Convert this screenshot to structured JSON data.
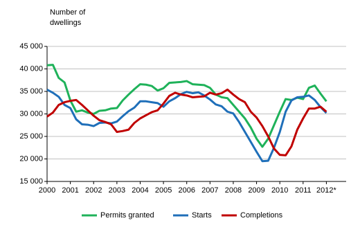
{
  "chart_data": {
    "type": "line",
    "ylabel_lines": [
      "Number of",
      "dwellings"
    ],
    "x": [
      2000,
      2000.25,
      2000.5,
      2000.75,
      2001,
      2001.25,
      2001.5,
      2001.75,
      2002,
      2002.25,
      2002.5,
      2002.75,
      2003,
      2003.25,
      2003.5,
      2003.75,
      2004,
      2004.25,
      2004.5,
      2004.75,
      2005,
      2005.25,
      2005.5,
      2005.75,
      2006,
      2006.25,
      2006.5,
      2006.75,
      2007,
      2007.25,
      2007.5,
      2007.75,
      2008,
      2008.25,
      2008.5,
      2008.75,
      2009,
      2009.25,
      2009.5,
      2009.75,
      2010,
      2010.25,
      2010.5,
      2010.75,
      2011,
      2011.25,
      2011.5,
      2011.75,
      2012
    ],
    "series": [
      {
        "name": "Permits granted",
        "color": "#1fb25a",
        "values": [
          40800,
          40900,
          38000,
          37000,
          33000,
          30500,
          30800,
          30300,
          30000,
          30700,
          30800,
          31200,
          31300,
          33000,
          34300,
          35500,
          36600,
          36500,
          36200,
          35200,
          35700,
          36900,
          37000,
          37100,
          37300,
          36600,
          36500,
          36400,
          35800,
          34300,
          33700,
          33500,
          32000,
          30500,
          29000,
          27000,
          24500,
          22700,
          24500,
          27500,
          30500,
          33300,
          33100,
          33600,
          33300,
          35800,
          36300,
          34500,
          32800
        ]
      },
      {
        "name": "Starts",
        "color": "#1f6fb9",
        "values": [
          35400,
          34700,
          33800,
          32000,
          31300,
          28800,
          27700,
          27600,
          27300,
          28000,
          28100,
          27900,
          28300,
          29500,
          30600,
          31400,
          32800,
          32800,
          32600,
          32400,
          31600,
          32800,
          33500,
          34400,
          34900,
          34600,
          34800,
          34100,
          33200,
          32100,
          31700,
          30500,
          30100,
          28200,
          26000,
          23800,
          21600,
          19500,
          19600,
          22500,
          26000,
          30500,
          33000,
          33700,
          33800,
          34100,
          33100,
          31500,
          30200
        ]
      },
      {
        "name": "Completions",
        "color": "#c00000",
        "values": [
          29400,
          30300,
          32000,
          32600,
          32900,
          33100,
          32000,
          30800,
          29600,
          28600,
          28200,
          27700,
          26000,
          26200,
          26500,
          28000,
          29000,
          29700,
          30400,
          30800,
          32300,
          34000,
          34700,
          34300,
          34100,
          33700,
          33800,
          33900,
          34700,
          34300,
          34600,
          35400,
          34300,
          33300,
          32600,
          30500,
          29200,
          27300,
          25000,
          22300,
          20900,
          20800,
          22800,
          26500,
          29000,
          31200,
          31200,
          31600,
          30500
        ]
      }
    ],
    "xlim": [
      2000,
      2012.85
    ],
    "xticks": [
      2000,
      2001,
      2002,
      2003,
      2004,
      2005,
      2006,
      2007,
      2008,
      2009,
      2010,
      2011,
      {
        "value": 2012,
        "label": "2012*"
      }
    ],
    "ylim": [
      15000,
      45000
    ],
    "yticks": [
      {
        "value": 15000,
        "label": "15 000"
      },
      {
        "value": 20000,
        "label": "20 000"
      },
      {
        "value": 25000,
        "label": "25 000"
      },
      {
        "value": 30000,
        "label": "30 000"
      },
      {
        "value": 35000,
        "label": "35 000"
      },
      {
        "value": 40000,
        "label": "40 000"
      },
      {
        "value": 45000,
        "label": "45 000"
      }
    ],
    "grid": true,
    "legend": "bottom"
  }
}
